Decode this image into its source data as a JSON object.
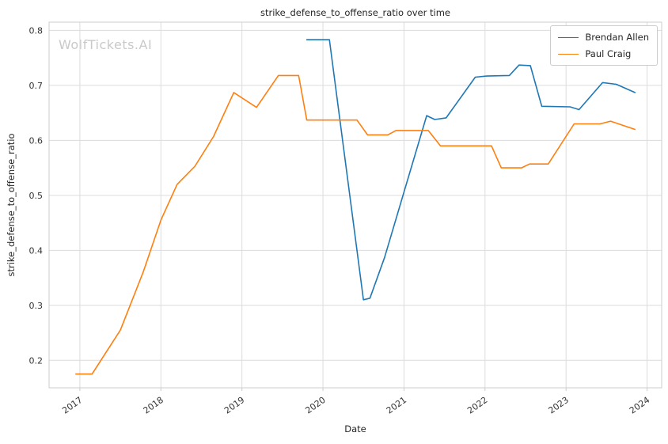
{
  "watermark": "WolfTickets.AI",
  "chart_data": {
    "type": "line",
    "title": "strike_defense_to_offense_ratio over time",
    "xlabel": "Date",
    "ylabel": "strike_defense_to_offense_ratio",
    "xlim": [
      2016.62,
      2024.18
    ],
    "ylim": [
      0.15,
      0.815
    ],
    "xticks": [
      2017,
      2018,
      2019,
      2020,
      2021,
      2022,
      2023,
      2024
    ],
    "yticks": [
      0.2,
      0.3,
      0.4,
      0.5,
      0.6,
      0.7,
      0.8
    ],
    "grid": true,
    "legend_position": "upper right",
    "colors": {
      "grid": "#dcdcdc",
      "frame": "#cccccc",
      "text": "#262626"
    },
    "series": [
      {
        "name": "Brendan Allen",
        "color": "#1f77b4",
        "x": [
          2019.8,
          2020.08,
          2020.5,
          2020.58,
          2020.76,
          2021.28,
          2021.38,
          2021.52,
          2021.88,
          2022.02,
          2022.3,
          2022.42,
          2022.56,
          2022.7,
          2023.05,
          2023.16,
          2023.45,
          2023.62,
          2023.85
        ],
        "y": [
          0.783,
          0.783,
          0.31,
          0.313,
          0.387,
          0.645,
          0.638,
          0.641,
          0.715,
          0.717,
          0.718,
          0.737,
          0.736,
          0.662,
          0.661,
          0.656,
          0.705,
          0.702,
          0.687
        ]
      },
      {
        "name": "Paul Craig",
        "color": "#ff7f0e",
        "x": [
          2016.95,
          2017.15,
          2017.5,
          2017.78,
          2018.0,
          2018.2,
          2018.42,
          2018.65,
          2018.9,
          2019.18,
          2019.45,
          2019.7,
          2019.8,
          2020.42,
          2020.55,
          2020.8,
          2020.9,
          2021.3,
          2021.45,
          2022.08,
          2022.2,
          2022.45,
          2022.55,
          2022.78,
          2023.1,
          2023.42,
          2023.55,
          2023.85
        ],
        "y": [
          0.175,
          0.175,
          0.255,
          0.36,
          0.455,
          0.52,
          0.553,
          0.607,
          0.687,
          0.66,
          0.718,
          0.718,
          0.637,
          0.637,
          0.61,
          0.61,
          0.618,
          0.618,
          0.59,
          0.59,
          0.55,
          0.55,
          0.557,
          0.557,
          0.63,
          0.63,
          0.635,
          0.62
        ]
      }
    ]
  }
}
